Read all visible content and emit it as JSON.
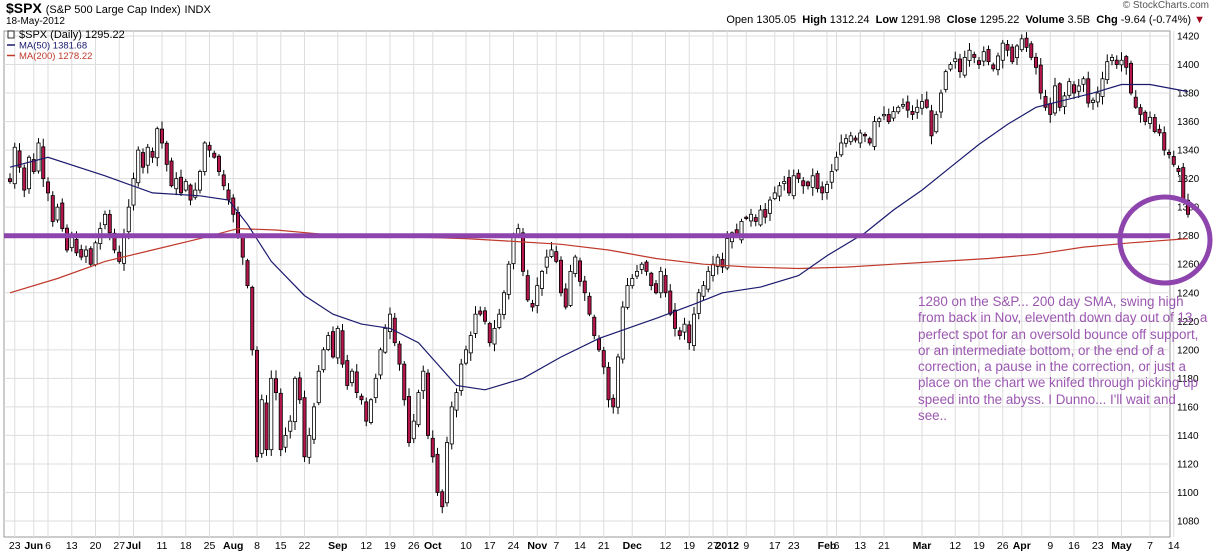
{
  "header": {
    "symbol": "$SPX",
    "description": "(S&P 500 Large Cap Index)",
    "exchange": "INDX",
    "date": "18-May-2012",
    "brand": "© StockCharts.com",
    "open_label": "Open",
    "open": "1305.05",
    "high_label": "High",
    "high": "1312.24",
    "low_label": "Low",
    "low": "1291.98",
    "close_label": "Close",
    "close": "1295.22",
    "volume_label": "Volume",
    "volume": "3.5B",
    "chg_label": "Chg",
    "chg": "-9.64 (-0.74%)",
    "chg_arrow": "▼"
  },
  "legend": [
    {
      "text": "$SPX (Daily) 1295.22",
      "color": "#000000"
    },
    {
      "text": "MA(50) 1381.68",
      "color": "#1a1a6e"
    },
    {
      "text": "MA(200) 1278.22",
      "color": "#c0392b"
    }
  ],
  "annotation": "1280 on the S&P...  200 day SMA, swing high from back in Nov,  eleventh down day out of 13, a perfect spot for an oversold bounce off support, or an intermediate bottom, or the end of a correction, a pause in the correction, or just a place on the chart we knifed through picking up speed into the abyss.   I Dunno... I'll wait and see..",
  "colors": {
    "up_candle": "#ffffff",
    "down_candle": "#b3164b",
    "ma50": "#1a1a6e",
    "ma200": "#c0392b",
    "support": "#8e44ad",
    "grid": "#dddddd"
  },
  "chart_data": {
    "type": "candlestick",
    "ylim": [
      1070,
      1425
    ],
    "y_ticks": [
      1080,
      1100,
      1120,
      1140,
      1160,
      1180,
      1200,
      1220,
      1240,
      1260,
      1280,
      1300,
      1320,
      1340,
      1360,
      1380,
      1400,
      1420
    ],
    "x_ticks": [
      {
        "label": "23",
        "i": 1,
        "bold": false
      },
      {
        "label": "Jun",
        "i": 5,
        "bold": true
      },
      {
        "label": "6",
        "i": 8,
        "bold": false
      },
      {
        "label": "13",
        "i": 13,
        "bold": false
      },
      {
        "label": "20",
        "i": 18,
        "bold": false
      },
      {
        "label": "27",
        "i": 23,
        "bold": false
      },
      {
        "label": "Jul",
        "i": 26,
        "bold": true
      },
      {
        "label": "11",
        "i": 32,
        "bold": false
      },
      {
        "label": "18",
        "i": 37,
        "bold": false
      },
      {
        "label": "25",
        "i": 42,
        "bold": false
      },
      {
        "label": "Aug",
        "i": 47,
        "bold": true
      },
      {
        "label": "8",
        "i": 52,
        "bold": false
      },
      {
        "label": "15",
        "i": 57,
        "bold": false
      },
      {
        "label": "22",
        "i": 62,
        "bold": false
      },
      {
        "label": "Sep",
        "i": 69,
        "bold": true
      },
      {
        "label": "12",
        "i": 75,
        "bold": false
      },
      {
        "label": "19",
        "i": 80,
        "bold": false
      },
      {
        "label": "26",
        "i": 85,
        "bold": false
      },
      {
        "label": "Oct",
        "i": 89,
        "bold": true
      },
      {
        "label": "10",
        "i": 96,
        "bold": false
      },
      {
        "label": "17",
        "i": 101,
        "bold": false
      },
      {
        "label": "24",
        "i": 106,
        "bold": false
      },
      {
        "label": "Nov",
        "i": 111,
        "bold": true
      },
      {
        "label": "7",
        "i": 115,
        "bold": false
      },
      {
        "label": "14",
        "i": 120,
        "bold": false
      },
      {
        "label": "21",
        "i": 125,
        "bold": false
      },
      {
        "label": "Dec",
        "i": 131,
        "bold": true
      },
      {
        "label": "12",
        "i": 138,
        "bold": false
      },
      {
        "label": "19",
        "i": 143,
        "bold": false
      },
      {
        "label": "27",
        "i": 148,
        "bold": false
      },
      {
        "label": "2012",
        "i": 151,
        "bold": true
      },
      {
        "label": "9",
        "i": 155,
        "bold": false
      },
      {
        "label": "17",
        "i": 161,
        "bold": false
      },
      {
        "label": "23",
        "i": 165,
        "bold": false
      },
      {
        "label": "Feb",
        "i": 172,
        "bold": true
      },
      {
        "label": "6",
        "i": 174,
        "bold": false
      },
      {
        "label": "13",
        "i": 179,
        "bold": false
      },
      {
        "label": "21",
        "i": 184,
        "bold": false
      },
      {
        "label": "Mar",
        "i": 192,
        "bold": true
      },
      {
        "label": "12",
        "i": 199,
        "bold": false
      },
      {
        "label": "19",
        "i": 204,
        "bold": false
      },
      {
        "label": "26",
        "i": 209,
        "bold": false
      },
      {
        "label": "Apr",
        "i": 213,
        "bold": true
      },
      {
        "label": "9",
        "i": 219,
        "bold": false
      },
      {
        "label": "16",
        "i": 224,
        "bold": false
      },
      {
        "label": "23",
        "i": 229,
        "bold": false
      },
      {
        "label": "May",
        "i": 234,
        "bold": true
      },
      {
        "label": "7",
        "i": 240,
        "bold": false
      },
      {
        "label": "14",
        "i": 245,
        "bold": false
      }
    ],
    "anchors": [
      [
        0,
        1318
      ],
      [
        1,
        1342
      ],
      [
        2,
        1328
      ],
      [
        3,
        1312
      ],
      [
        4,
        1335
      ],
      [
        5,
        1325
      ],
      [
        6,
        1345
      ],
      [
        7,
        1320
      ],
      [
        8,
        1310
      ],
      [
        9,
        1290
      ],
      [
        10,
        1300
      ],
      [
        11,
        1285
      ],
      [
        12,
        1270
      ],
      [
        13,
        1280
      ],
      [
        14,
        1268
      ],
      [
        15,
        1265
      ],
      [
        16,
        1270
      ],
      [
        17,
        1260
      ],
      [
        18,
        1275
      ],
      [
        19,
        1285
      ],
      [
        20,
        1295
      ],
      [
        21,
        1282
      ],
      [
        22,
        1270
      ],
      [
        23,
        1262
      ],
      [
        24,
        1280
      ],
      [
        25,
        1300
      ],
      [
        26,
        1320
      ],
      [
        27,
        1340
      ],
      [
        28,
        1328
      ],
      [
        29,
        1342
      ],
      [
        30,
        1335
      ],
      [
        31,
        1355
      ],
      [
        32,
        1345
      ],
      [
        33,
        1330
      ],
      [
        34,
        1315
      ],
      [
        35,
        1320
      ],
      [
        36,
        1310
      ],
      [
        37,
        1318
      ],
      [
        38,
        1305
      ],
      [
        39,
        1312
      ],
      [
        40,
        1325
      ],
      [
        41,
        1345
      ],
      [
        42,
        1340
      ],
      [
        43,
        1335
      ],
      [
        44,
        1325
      ],
      [
        45,
        1315
      ],
      [
        46,
        1305
      ],
      [
        47,
        1295
      ],
      [
        48,
        1280
      ],
      [
        49,
        1265
      ],
      [
        50,
        1245
      ],
      [
        51,
        1200
      ],
      [
        52,
        1125
      ],
      [
        53,
        1165
      ],
      [
        54,
        1130
      ],
      [
        55,
        1180
      ],
      [
        56,
        1170
      ],
      [
        57,
        1130
      ],
      [
        58,
        1140
      ],
      [
        59,
        1150
      ],
      [
        60,
        1180
      ],
      [
        61,
        1165
      ],
      [
        62,
        1125
      ],
      [
        63,
        1140
      ],
      [
        64,
        1160
      ],
      [
        65,
        1185
      ],
      [
        66,
        1200
      ],
      [
        67,
        1210
      ],
      [
        68,
        1195
      ],
      [
        69,
        1215
      ],
      [
        70,
        1190
      ],
      [
        71,
        1175
      ],
      [
        72,
        1185
      ],
      [
        73,
        1170
      ],
      [
        74,
        1165
      ],
      [
        75,
        1150
      ],
      [
        76,
        1165
      ],
      [
        77,
        1180
      ],
      [
        78,
        1200
      ],
      [
        79,
        1215
      ],
      [
        80,
        1225
      ],
      [
        81,
        1205
      ],
      [
        82,
        1190
      ],
      [
        83,
        1165
      ],
      [
        84,
        1135
      ],
      [
        85,
        1150
      ],
      [
        86,
        1170
      ],
      [
        87,
        1185
      ],
      [
        88,
        1140
      ],
      [
        89,
        1125
      ],
      [
        90,
        1100
      ],
      [
        91,
        1090
      ],
      [
        92,
        1135
      ],
      [
        93,
        1160
      ],
      [
        94,
        1170
      ],
      [
        95,
        1190
      ],
      [
        96,
        1200
      ],
      [
        97,
        1210
      ],
      [
        98,
        1225
      ],
      [
        99,
        1225
      ],
      [
        100,
        1220
      ],
      [
        101,
        1205
      ],
      [
        102,
        1215
      ],
      [
        103,
        1225
      ],
      [
        104,
        1240
      ],
      [
        105,
        1260
      ],
      [
        106,
        1280
      ],
      [
        107,
        1285
      ],
      [
        108,
        1255
      ],
      [
        109,
        1235
      ],
      [
        110,
        1230
      ],
      [
        111,
        1245
      ],
      [
        112,
        1255
      ],
      [
        113,
        1265
      ],
      [
        114,
        1270
      ],
      [
        115,
        1262
      ],
      [
        116,
        1240
      ],
      [
        117,
        1230
      ],
      [
        118,
        1255
      ],
      [
        119,
        1265
      ],
      [
        120,
        1248
      ],
      [
        121,
        1240
      ],
      [
        122,
        1225
      ],
      [
        123,
        1210
      ],
      [
        124,
        1200
      ],
      [
        125,
        1188
      ],
      [
        126,
        1165
      ],
      [
        127,
        1160
      ],
      [
        128,
        1195
      ],
      [
        129,
        1230
      ],
      [
        130,
        1245
      ],
      [
        131,
        1250
      ],
      [
        132,
        1255
      ],
      [
        133,
        1260
      ],
      [
        134,
        1255
      ],
      [
        135,
        1245
      ],
      [
        136,
        1240
      ],
      [
        137,
        1255
      ],
      [
        138,
        1240
      ],
      [
        139,
        1225
      ],
      [
        140,
        1215
      ],
      [
        141,
        1210
      ],
      [
        142,
        1218
      ],
      [
        143,
        1205
      ],
      [
        144,
        1225
      ],
      [
        145,
        1240
      ],
      [
        146,
        1245
      ],
      [
        147,
        1255
      ],
      [
        148,
        1260
      ],
      [
        149,
        1265
      ],
      [
        150,
        1258
      ],
      [
        151,
        1278
      ],
      [
        152,
        1282
      ],
      [
        153,
        1280
      ],
      [
        154,
        1290
      ],
      [
        155,
        1292
      ],
      [
        156,
        1295
      ],
      [
        157,
        1290
      ],
      [
        158,
        1298
      ],
      [
        159,
        1293
      ],
      [
        160,
        1305
      ],
      [
        161,
        1310
      ],
      [
        162,
        1315
      ],
      [
        163,
        1318
      ],
      [
        164,
        1310
      ],
      [
        165,
        1322
      ],
      [
        166,
        1320
      ],
      [
        167,
        1315
      ],
      [
        168,
        1315
      ],
      [
        169,
        1322
      ],
      [
        170,
        1313
      ],
      [
        171,
        1310
      ],
      [
        172,
        1316
      ],
      [
        173,
        1325
      ],
      [
        174,
        1335
      ],
      [
        175,
        1345
      ],
      [
        176,
        1348
      ],
      [
        177,
        1350
      ],
      [
        178,
        1347
      ],
      [
        179,
        1352
      ],
      [
        180,
        1350
      ],
      [
        181,
        1345
      ],
      [
        182,
        1360
      ],
      [
        183,
        1362
      ],
      [
        184,
        1365
      ],
      [
        185,
        1360
      ],
      [
        186,
        1367
      ],
      [
        187,
        1370
      ],
      [
        188,
        1372
      ],
      [
        189,
        1368
      ],
      [
        190,
        1365
      ],
      [
        191,
        1370
      ],
      [
        192,
        1374
      ],
      [
        193,
        1370
      ],
      [
        194,
        1350
      ],
      [
        195,
        1365
      ],
      [
        196,
        1380
      ],
      [
        197,
        1395
      ],
      [
        198,
        1400
      ],
      [
        199,
        1404
      ],
      [
        200,
        1395
      ],
      [
        201,
        1405
      ],
      [
        202,
        1410
      ],
      [
        203,
        1405
      ],
      [
        204,
        1400
      ],
      [
        205,
        1409
      ],
      [
        206,
        1402
      ],
      [
        207,
        1397
      ],
      [
        208,
        1406
      ],
      [
        209,
        1415
      ],
      [
        210,
        1410
      ],
      [
        211,
        1402
      ],
      [
        212,
        1413
      ],
      [
        213,
        1418
      ],
      [
        214,
        1412
      ],
      [
        215,
        1405
      ],
      [
        216,
        1398
      ],
      [
        217,
        1380
      ],
      [
        218,
        1370
      ],
      [
        219,
        1365
      ],
      [
        220,
        1385
      ],
      [
        221,
        1370
      ],
      [
        222,
        1378
      ],
      [
        223,
        1388
      ],
      [
        224,
        1380
      ],
      [
        225,
        1385
      ],
      [
        226,
        1390
      ],
      [
        227,
        1373
      ],
      [
        228,
        1375
      ],
      [
        229,
        1380
      ],
      [
        230,
        1390
      ],
      [
        231,
        1402
      ],
      [
        232,
        1405
      ],
      [
        233,
        1400
      ],
      [
        234,
        1403
      ],
      [
        235,
        1398
      ],
      [
        236,
        1380
      ],
      [
        237,
        1370
      ],
      [
        238,
        1365
      ],
      [
        239,
        1360
      ],
      [
        240,
        1363
      ],
      [
        241,
        1353
      ],
      [
        242,
        1352
      ],
      [
        243,
        1340
      ],
      [
        244,
        1337
      ],
      [
        245,
        1330
      ],
      [
        246,
        1325
      ],
      [
        247,
        1305
      ],
      [
        248,
        1295
      ]
    ],
    "ma50": [
      [
        0,
        1328
      ],
      [
        8,
        1335
      ],
      [
        20,
        1322
      ],
      [
        30,
        1310
      ],
      [
        40,
        1308
      ],
      [
        46,
        1305
      ],
      [
        50,
        1288
      ],
      [
        55,
        1262
      ],
      [
        62,
        1238
      ],
      [
        68,
        1225
      ],
      [
        74,
        1218
      ],
      [
        80,
        1215
      ],
      [
        86,
        1205
      ],
      [
        90,
        1190
      ],
      [
        94,
        1175
      ],
      [
        100,
        1172
      ],
      [
        108,
        1180
      ],
      [
        116,
        1195
      ],
      [
        124,
        1208
      ],
      [
        130,
        1215
      ],
      [
        136,
        1222
      ],
      [
        144,
        1232
      ],
      [
        150,
        1240
      ],
      [
        158,
        1244
      ],
      [
        166,
        1252
      ],
      [
        172,
        1266
      ],
      [
        180,
        1282
      ],
      [
        186,
        1298
      ],
      [
        192,
        1312
      ],
      [
        198,
        1328
      ],
      [
        204,
        1344
      ],
      [
        210,
        1358
      ],
      [
        216,
        1370
      ],
      [
        222,
        1375
      ],
      [
        228,
        1380
      ],
      [
        234,
        1386
      ],
      [
        240,
        1386
      ],
      [
        248,
        1381
      ]
    ],
    "ma200": [
      [
        0,
        1240
      ],
      [
        10,
        1250
      ],
      [
        20,
        1262
      ],
      [
        30,
        1270
      ],
      [
        40,
        1278
      ],
      [
        48,
        1285
      ],
      [
        56,
        1284
      ],
      [
        66,
        1281
      ],
      [
        76,
        1280
      ],
      [
        86,
        1279
      ],
      [
        96,
        1278
      ],
      [
        106,
        1276
      ],
      [
        116,
        1274
      ],
      [
        126,
        1270
      ],
      [
        136,
        1264
      ],
      [
        146,
        1260
      ],
      [
        156,
        1258
      ],
      [
        166,
        1257
      ],
      [
        176,
        1258
      ],
      [
        186,
        1260
      ],
      [
        196,
        1262
      ],
      [
        206,
        1264
      ],
      [
        216,
        1267
      ],
      [
        226,
        1272
      ],
      [
        236,
        1275
      ],
      [
        248,
        1278
      ]
    ],
    "support_level": 1280,
    "last_bar_index": 248
  }
}
